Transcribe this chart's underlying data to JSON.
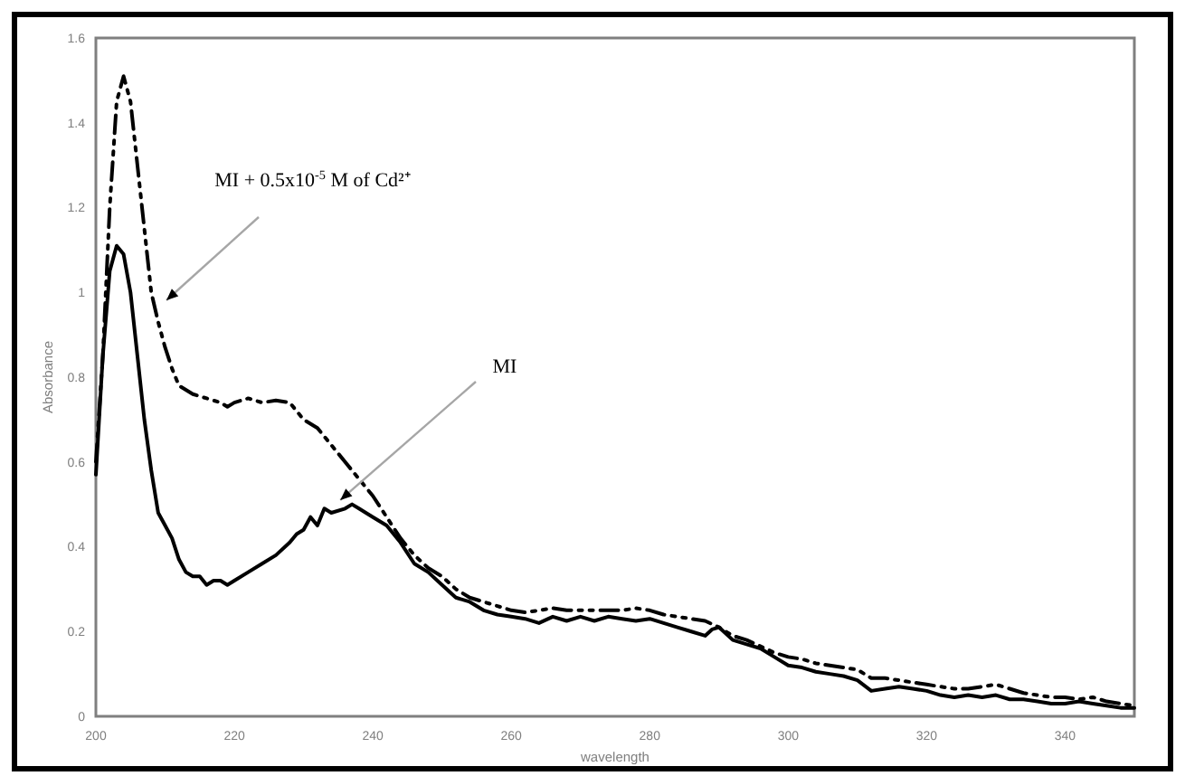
{
  "chart_data": {
    "type": "line",
    "xlabel": "wavelength",
    "ylabel": "Absorbance",
    "xlim": [
      200,
      350
    ],
    "xticks": [
      200,
      220,
      240,
      260,
      280,
      300,
      320,
      340
    ],
    "ylim": [
      0,
      1.6
    ],
    "yticks": [
      0,
      0.2,
      0.4,
      0.6,
      0.8,
      1,
      1.2,
      1.4,
      1.6
    ],
    "grid": false,
    "marker": "none",
    "annotations": [
      "MI + 0.5x10$^{-5}$ M of Cd²⁺",
      {
        "text": "MI",
        "x": 235.3,
        "y": 0.51
      }
    ],
    "series": [
      {
        "color": "#000000",
        "line_style": "solid",
        "x": [
          200,
          201,
          202,
          203,
          204,
          205,
          206,
          207,
          208,
          209,
          210,
          211,
          212,
          213,
          214,
          215,
          216,
          217,
          218,
          219,
          220,
          222,
          224,
          226,
          228,
          229,
          230,
          231,
          232,
          233,
          234,
          236,
          237,
          238,
          240,
          242,
          244,
          246,
          248,
          250,
          252,
          254,
          256,
          258,
          260,
          262,
          264,
          266,
          268,
          270,
          272,
          274,
          276,
          278,
          280,
          282,
          284,
          286,
          288,
          289,
          290,
          292,
          294,
          296,
          298,
          300,
          302,
          304,
          306,
          308,
          310,
          312,
          314,
          316,
          318,
          320,
          322,
          324,
          326,
          328,
          330,
          332,
          334,
          336,
          338,
          340,
          342,
          344,
          346,
          348,
          350
        ],
        "values": [
          0.57,
          0.85,
          1.05,
          1.11,
          1.09,
          1.0,
          0.85,
          0.7,
          0.58,
          0.48,
          0.45,
          0.42,
          0.37,
          0.34,
          0.33,
          0.33,
          0.31,
          0.32,
          0.32,
          0.31,
          0.32,
          0.34,
          0.36,
          0.38,
          0.41,
          0.43,
          0.44,
          0.47,
          0.45,
          0.49,
          0.48,
          0.49,
          0.5,
          0.49,
          0.47,
          0.45,
          0.41,
          0.36,
          0.34,
          0.31,
          0.28,
          0.27,
          0.25,
          0.24,
          0.235,
          0.23,
          0.22,
          0.235,
          0.225,
          0.235,
          0.225,
          0.235,
          0.23,
          0.225,
          0.23,
          0.22,
          0.21,
          0.2,
          0.19,
          0.205,
          0.21,
          0.18,
          0.17,
          0.16,
          0.14,
          0.12,
          0.115,
          0.105,
          0.1,
          0.095,
          0.085,
          0.06,
          0.065,
          0.07,
          0.065,
          0.06,
          0.05,
          0.045,
          0.05,
          0.045,
          0.05,
          0.04,
          0.04,
          0.035,
          0.03,
          0.03,
          0.035,
          0.03,
          0.025,
          0.02,
          0.02
        ]
      },
      {
        "color": "#000000",
        "line_style": "dashed",
        "x": [
          200,
          201,
          202,
          203,
          204,
          205,
          206,
          207,
          208,
          209,
          210,
          211,
          212,
          214,
          216,
          218,
          219,
          220,
          222,
          224,
          226,
          228,
          229,
          230,
          232,
          234,
          236,
          238,
          240,
          242,
          244,
          246,
          248,
          250,
          252,
          254,
          256,
          258,
          260,
          262,
          264,
          266,
          268,
          270,
          272,
          274,
          276,
          278,
          280,
          282,
          284,
          286,
          288,
          290,
          292,
          294,
          296,
          298,
          300,
          302,
          304,
          306,
          308,
          310,
          312,
          314,
          316,
          318,
          320,
          322,
          324,
          326,
          328,
          330,
          332,
          334,
          336,
          338,
          340,
          342,
          344,
          346,
          348,
          350
        ],
        "values": [
          0.6,
          0.85,
          1.2,
          1.45,
          1.51,
          1.45,
          1.3,
          1.15,
          1.0,
          0.93,
          0.87,
          0.82,
          0.78,
          0.76,
          0.75,
          0.74,
          0.73,
          0.74,
          0.75,
          0.74,
          0.745,
          0.74,
          0.72,
          0.7,
          0.68,
          0.64,
          0.6,
          0.56,
          0.52,
          0.47,
          0.42,
          0.38,
          0.35,
          0.33,
          0.3,
          0.28,
          0.27,
          0.26,
          0.25,
          0.245,
          0.25,
          0.255,
          0.25,
          0.25,
          0.25,
          0.25,
          0.25,
          0.255,
          0.25,
          0.24,
          0.235,
          0.23,
          0.225,
          0.21,
          0.19,
          0.18,
          0.165,
          0.15,
          0.14,
          0.135,
          0.125,
          0.12,
          0.115,
          0.11,
          0.09,
          0.09,
          0.085,
          0.08,
          0.075,
          0.07,
          0.065,
          0.065,
          0.07,
          0.075,
          0.065,
          0.055,
          0.05,
          0.045,
          0.045,
          0.04,
          0.045,
          0.035,
          0.03,
          0.025
        ]
      }
    ]
  }
}
